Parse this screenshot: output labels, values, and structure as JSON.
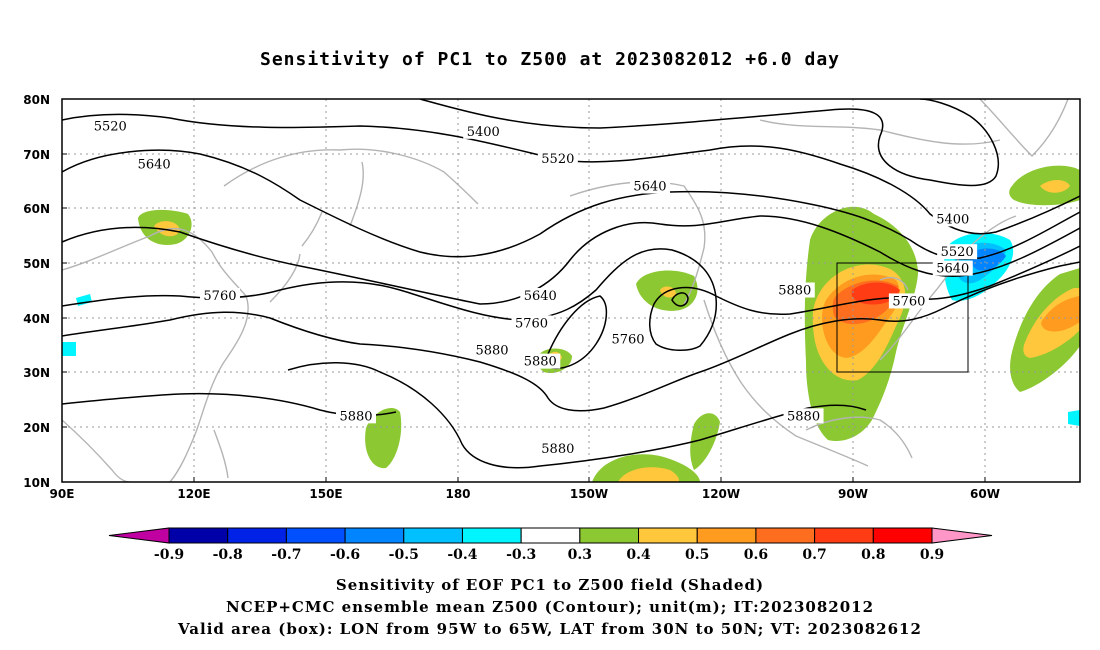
{
  "title": "Sensitivity of PC1 to Z500 at 2023082012 +6.0 day",
  "axes": {
    "lat_ticks": [
      "80N",
      "70N",
      "60N",
      "50N",
      "40N",
      "30N",
      "20N",
      "10N"
    ],
    "lon_ticks": [
      "90E",
      "120E",
      "150E",
      "180",
      "150W",
      "120W",
      "90W",
      "60W"
    ],
    "lon_range": [
      90,
      322
    ],
    "lat_range": [
      10,
      80
    ],
    "grid": true
  },
  "contour_labels": [
    {
      "text": "5520",
      "lon": 101,
      "lat": 75
    },
    {
      "text": "5400",
      "lon": 186,
      "lat": 74
    },
    {
      "text": "5640",
      "lon": 111,
      "lat": 68
    },
    {
      "text": "5520",
      "lon": 203,
      "lat": 69
    },
    {
      "text": "5640",
      "lon": 224,
      "lat": 64
    },
    {
      "text": "5400",
      "lon": 293,
      "lat": 58
    },
    {
      "text": "5520",
      "lon": 294,
      "lat": 52
    },
    {
      "text": "5640",
      "lon": 293,
      "lat": 49
    },
    {
      "text": "5760",
      "lon": 126,
      "lat": 44
    },
    {
      "text": "5640",
      "lon": 199,
      "lat": 44
    },
    {
      "text": "5880",
      "lon": 257,
      "lat": 45
    },
    {
      "text": "5760",
      "lon": 283,
      "lat": 43
    },
    {
      "text": "5760",
      "lon": 197,
      "lat": 39
    },
    {
      "text": "5760",
      "lon": 219,
      "lat": 36
    },
    {
      "text": "5880",
      "lon": 188,
      "lat": 34
    },
    {
      "text": "5880",
      "lon": 199,
      "lat": 32
    },
    {
      "text": "5880",
      "lon": 157,
      "lat": 22
    },
    {
      "text": "5880",
      "lon": 259,
      "lat": 22
    },
    {
      "text": "5880",
      "lon": 203,
      "lat": 16
    }
  ],
  "valid_box": {
    "lon_from": "95W",
    "lon_to": "65W",
    "lat_from": "30N",
    "lat_to": "50N"
  },
  "colorbar": {
    "labels": [
      "-0.9",
      "-0.8",
      "-0.7",
      "-0.6",
      "-0.5",
      "-0.4",
      "-0.3",
      "0.3",
      "0.4",
      "0.5",
      "0.6",
      "0.7",
      "0.8",
      "0.9"
    ],
    "colors": [
      "#0000a8",
      "#0022e6",
      "#0050ff",
      "#0084ff",
      "#00c0ff",
      "#00f5ff",
      "#ffffff",
      "#8cc832",
      "#ffc83c",
      "#ff9b1e",
      "#ff6e1e",
      "#ff3c14",
      "#ff0000"
    ],
    "low_color": "#c000a0",
    "high_color": "#ff96c8"
  },
  "captions": [
    "Sensitivity of EOF PC1 to Z500 field (Shaded)",
    "NCEP+CMC ensemble mean Z500 (Contour); unit(m); IT:2023082012",
    "Valid area (box): LON from 95W to 65W, LAT from 30N to 50N; VT: 2023082612"
  ]
}
